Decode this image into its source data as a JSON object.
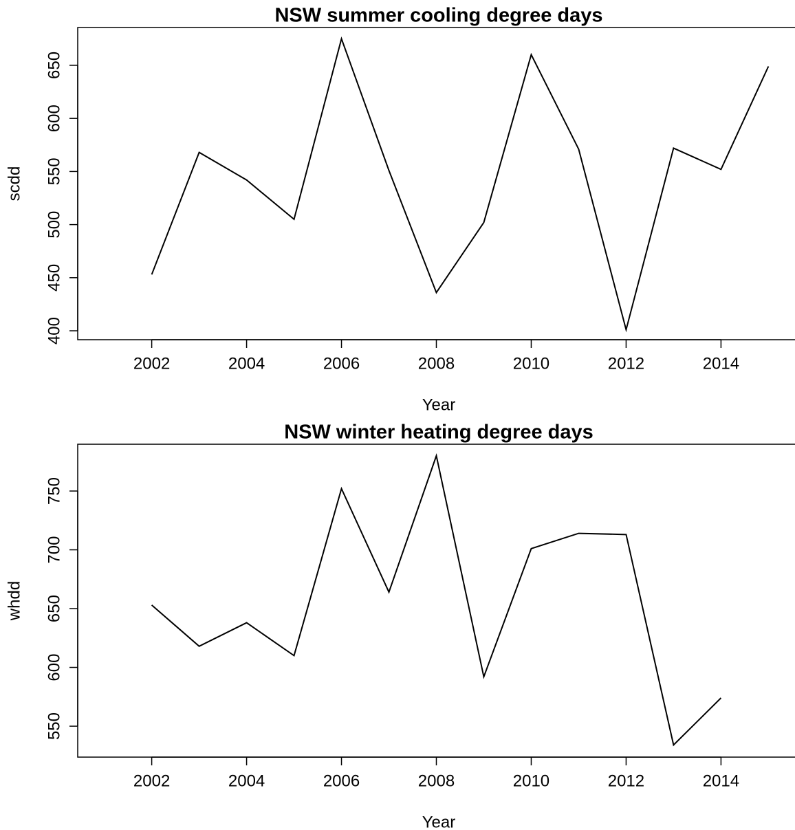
{
  "chart_data": [
    {
      "type": "line",
      "title": "NSW summer cooling degree days",
      "xlabel": "Year",
      "ylabel": "scdd",
      "x": [
        2002,
        2003,
        2004,
        2005,
        2006,
        2007,
        2008,
        2009,
        2010,
        2011,
        2012,
        2013,
        2014,
        2015
      ],
      "series": [
        {
          "color": "#000000",
          "values": [
            453,
            568,
            542,
            505,
            675,
            551,
            436,
            502,
            660,
            571,
            401,
            572,
            552,
            649
          ]
        }
      ],
      "xlim": [
        2000.44,
        2015.56
      ],
      "xticks": [
        2002,
        2004,
        2006,
        2008,
        2010,
        2012,
        2014
      ],
      "ylim": [
        391.6,
        685.6
      ],
      "yticks": [
        400,
        450,
        500,
        550,
        600,
        650
      ]
    },
    {
      "type": "line",
      "title": "NSW winter heating degree days",
      "xlabel": "Year",
      "ylabel": "whdd",
      "x": [
        2002,
        2003,
        2004,
        2005,
        2006,
        2007,
        2008,
        2009,
        2010,
        2011,
        2012,
        2013,
        2014,
        2015
      ],
      "series": [
        {
          "color": "#000000",
          "values": [
            653,
            618,
            638,
            610,
            752,
            664,
            780,
            592,
            701,
            714,
            713,
            534,
            574,
            null
          ]
        }
      ],
      "xlim": [
        2000.44,
        2015.56
      ],
      "xticks": [
        2002,
        2004,
        2006,
        2008,
        2010,
        2012,
        2014
      ],
      "ylim": [
        523.7,
        789.8
      ],
      "yticks": [
        550,
        600,
        650,
        700,
        750
      ]
    }
  ]
}
